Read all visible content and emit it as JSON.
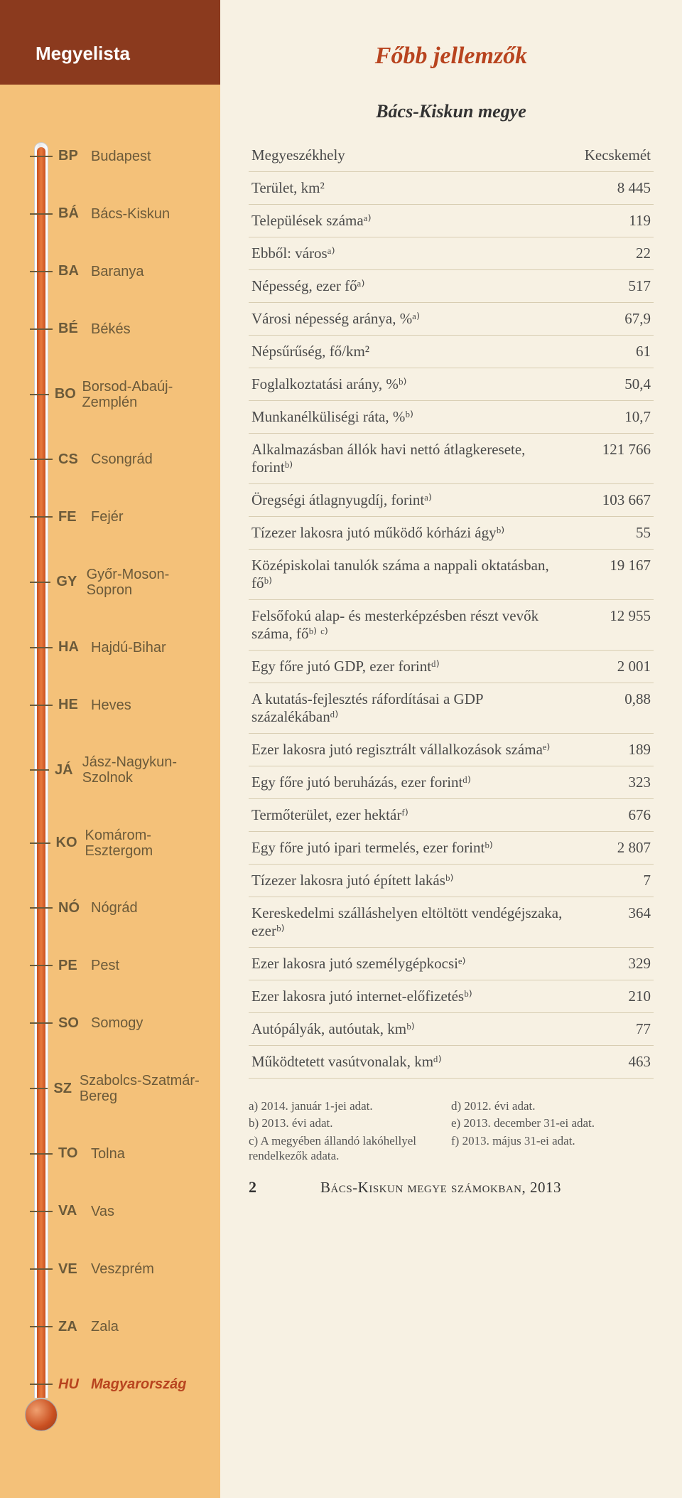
{
  "colors": {
    "page_bg": "#f7f1e3",
    "sidebar_bg": "#f4c179",
    "header_bg": "#8b3a1e",
    "accent": "#b8441f",
    "mercury": "#c94f20",
    "text": "#4a4a4a",
    "rule": "#d8cdb2",
    "sidebar_text": "#6b5a3a"
  },
  "sidebar": {
    "title": "Megyelista",
    "items": [
      {
        "code": "BP",
        "name": "Budapest"
      },
      {
        "code": "BÁ",
        "name": "Bács-Kiskun"
      },
      {
        "code": "BA",
        "name": "Baranya"
      },
      {
        "code": "BÉ",
        "name": "Békés"
      },
      {
        "code": "BO",
        "name": "Borsod-Abaúj-Zemplén"
      },
      {
        "code": "CS",
        "name": "Csongrád"
      },
      {
        "code": "FE",
        "name": "Fejér"
      },
      {
        "code": "GY",
        "name": "Győr-Moson-Sopron"
      },
      {
        "code": "HA",
        "name": "Hajdú-Bihar"
      },
      {
        "code": "HE",
        "name": "Heves"
      },
      {
        "code": "JÁ",
        "name": "Jász-Nagykun-Szolnok"
      },
      {
        "code": "KO",
        "name": "Komárom-Esztergom"
      },
      {
        "code": "NÓ",
        "name": "Nógrád"
      },
      {
        "code": "PE",
        "name": "Pest"
      },
      {
        "code": "SO",
        "name": "Somogy"
      },
      {
        "code": "SZ",
        "name": "Szabolcs-Szatmár-Bereg"
      },
      {
        "code": "TO",
        "name": "Tolna"
      },
      {
        "code": "VA",
        "name": "Vas"
      },
      {
        "code": "VE",
        "name": "Veszprém"
      },
      {
        "code": "ZA",
        "name": "Zala"
      },
      {
        "code": "HU",
        "name": "Magyarország",
        "highlight": true
      }
    ]
  },
  "main": {
    "title": "Főbb jellemzők",
    "subtitle": "Bács-Kiskun megye",
    "rows": [
      {
        "label": "Megyeszékhely",
        "value": "Kecskemét"
      },
      {
        "label": "Terület, km²",
        "value": "8 445"
      },
      {
        "label": "Települések számaᵃ⁾",
        "value": "119"
      },
      {
        "label": "Ebből: városᵃ⁾",
        "value": "22"
      },
      {
        "label": "Népesség, ezer főᵃ⁾",
        "value": "517"
      },
      {
        "label": "Városi népesség aránya, %ᵃ⁾",
        "value": "67,9"
      },
      {
        "label": "Népsűrűség, fő/km²",
        "value": "61"
      },
      {
        "label": "Foglalkoztatási arány, %ᵇ⁾",
        "value": "50,4"
      },
      {
        "label": "Munkanélküliségi ráta, %ᵇ⁾",
        "value": "10,7"
      },
      {
        "label": "Alkalmazásban állók havi nettó átlagkeresete, forintᵇ⁾",
        "value": "121 766"
      },
      {
        "label": "Öregségi átlagnyugdíj, forintᵃ⁾",
        "value": "103 667"
      },
      {
        "label": "Tízezer lakosra jutó működő kórházi ágyᵇ⁾",
        "value": "55"
      },
      {
        "label": "Középiskolai tanulók száma a nappali oktatásban, főᵇ⁾",
        "value": "19 167"
      },
      {
        "label": "Felsőfokú alap- és mesterképzésben részt vevők száma, főᵇ⁾ ᶜ⁾",
        "value": "12 955"
      },
      {
        "label": "Egy főre jutó GDP, ezer forintᵈ⁾",
        "value": "2 001"
      },
      {
        "label": "A kutatás-fejlesztés ráfordításai a GDP százalékábanᵈ⁾",
        "value": "0,88"
      },
      {
        "label": "Ezer lakosra jutó regisztrált vállalkozások számaᵉ⁾",
        "value": "189"
      },
      {
        "label": "Egy főre jutó beruházás, ezer forintᵈ⁾",
        "value": "323"
      },
      {
        "label": "Termőterület, ezer hektárᶠ⁾",
        "value": "676"
      },
      {
        "label": "Egy főre jutó ipari termelés, ezer forintᵇ⁾",
        "value": "2 807"
      },
      {
        "label": "Tízezer lakosra jutó épített lakásᵇ⁾",
        "value": "7"
      },
      {
        "label": "Kereskedelmi szálláshelyen eltöltött vendégéjszaka, ezerᵇ⁾",
        "value": "364"
      },
      {
        "label": "Ezer lakosra jutó személygépkocsiᵉ⁾",
        "value": "329"
      },
      {
        "label": "Ezer lakosra jutó internet-előfizetésᵇ⁾",
        "value": "210"
      },
      {
        "label": "Autópályák, autóutak, kmᵇ⁾",
        "value": "77"
      },
      {
        "label": "Működtetett vasútvonalak, kmᵈ⁾",
        "value": "463"
      }
    ],
    "footnotes_left": [
      "a) 2014. január 1-jei adat.",
      "b) 2013. évi adat.",
      "c) A megyében állandó lakóhellyel rendelkezők adata."
    ],
    "footnotes_right": [
      "d) 2012. évi adat.",
      "e) 2013. december 31-ei adat.",
      "f) 2013. május 31-ei adat."
    ],
    "page_number": "2",
    "footer_text": "Bács-Kiskun megye számokban, 2013"
  }
}
